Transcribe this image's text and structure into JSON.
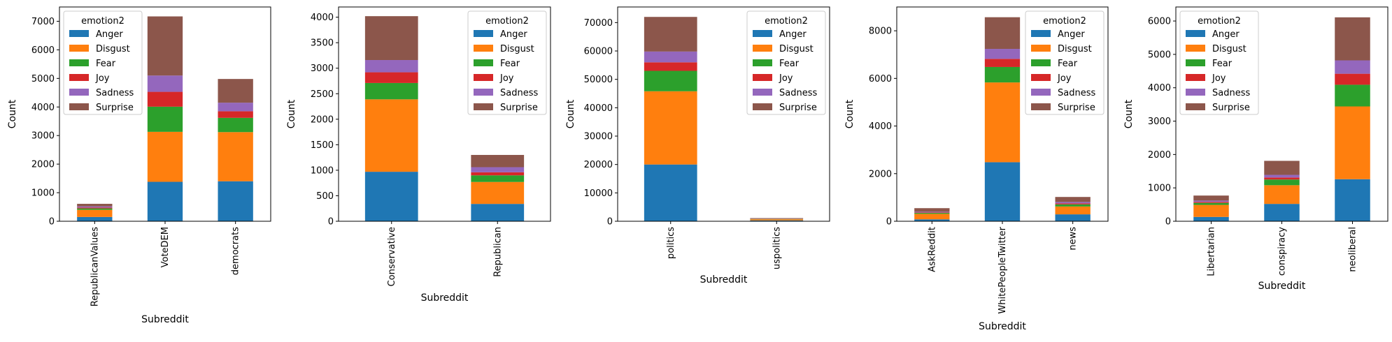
{
  "chart_data": [
    {
      "type": "bar",
      "stacked": true,
      "categories": [
        "RepublicanValues",
        "VoteDEM",
        "democrats"
      ],
      "xlabel": "Subreddit",
      "ylabel": "Count",
      "ylim": [
        0,
        7500
      ],
      "yticks": [
        0,
        1000,
        2000,
        3000,
        4000,
        5000,
        6000,
        7000
      ],
      "legend": {
        "title": "emotion2",
        "placement": "upper-left"
      },
      "series": [
        {
          "name": "Anger",
          "color": "#1f77b4",
          "values": [
            150,
            1380,
            1400
          ]
        },
        {
          "name": "Disgust",
          "color": "#ff7f0e",
          "values": [
            250,
            1750,
            1720
          ]
        },
        {
          "name": "Fear",
          "color": "#2ca02c",
          "values": [
            50,
            880,
            500
          ]
        },
        {
          "name": "Joy",
          "color": "#d62728",
          "values": [
            30,
            520,
            230
          ]
        },
        {
          "name": "Sadness",
          "color": "#9467bd",
          "values": [
            40,
            570,
            300
          ]
        },
        {
          "name": "Surprise",
          "color": "#8c564b",
          "values": [
            90,
            2070,
            830
          ]
        }
      ]
    },
    {
      "type": "bar",
      "stacked": true,
      "categories": [
        "Conservative",
        "Republican"
      ],
      "xlabel": "Subreddit",
      "ylabel": "Count",
      "ylim": [
        0,
        4200
      ],
      "yticks": [
        0,
        500,
        1000,
        1500,
        2000,
        2500,
        3000,
        3500,
        4000
      ],
      "legend": {
        "title": "emotion2",
        "placement": "upper-right"
      },
      "series": [
        {
          "name": "Anger",
          "color": "#1f77b4",
          "values": [
            970,
            340
          ]
        },
        {
          "name": "Disgust",
          "color": "#ff7f0e",
          "values": [
            1420,
            430
          ]
        },
        {
          "name": "Fear",
          "color": "#2ca02c",
          "values": [
            320,
            130
          ]
        },
        {
          "name": "Joy",
          "color": "#d62728",
          "values": [
            210,
            60
          ]
        },
        {
          "name": "Sadness",
          "color": "#9467bd",
          "values": [
            240,
            100
          ]
        },
        {
          "name": "Surprise",
          "color": "#8c564b",
          "values": [
            860,
            240
          ]
        }
      ]
    },
    {
      "type": "bar",
      "stacked": true,
      "categories": [
        "politics",
        "uspolitics"
      ],
      "xlabel": "Subreddit",
      "ylabel": "Count",
      "ylim": [
        0,
        75500
      ],
      "yticks": [
        0,
        10000,
        20000,
        30000,
        40000,
        50000,
        60000,
        70000
      ],
      "legend": {
        "title": "emotion2",
        "placement": "upper-right"
      },
      "series": [
        {
          "name": "Anger",
          "color": "#1f77b4",
          "values": [
            20000,
            300
          ]
        },
        {
          "name": "Disgust",
          "color": "#ff7f0e",
          "values": [
            25800,
            400
          ]
        },
        {
          "name": "Fear",
          "color": "#2ca02c",
          "values": [
            7200,
            100
          ]
        },
        {
          "name": "Joy",
          "color": "#d62728",
          "values": [
            3000,
            50
          ]
        },
        {
          "name": "Sadness",
          "color": "#9467bd",
          "values": [
            3800,
            60
          ]
        },
        {
          "name": "Surprise",
          "color": "#8c564b",
          "values": [
            12200,
            200
          ]
        }
      ]
    },
    {
      "type": "bar",
      "stacked": true,
      "categories": [
        "AskReddit",
        "WhitePeopleTwitter",
        "news"
      ],
      "xlabel": "Subreddit",
      "ylabel": "Count",
      "ylim": [
        0,
        9000
      ],
      "yticks": [
        0,
        2000,
        4000,
        6000,
        8000
      ],
      "legend": {
        "title": "emotion2",
        "placement": "upper-right"
      },
      "series": [
        {
          "name": "Anger",
          "color": "#1f77b4",
          "values": [
            80,
            2480,
            290
          ]
        },
        {
          "name": "Disgust",
          "color": "#ff7f0e",
          "values": [
            230,
            3350,
            330
          ]
        },
        {
          "name": "Fear",
          "color": "#2ca02c",
          "values": [
            40,
            650,
            90
          ]
        },
        {
          "name": "Joy",
          "color": "#d62728",
          "values": [
            20,
            340,
            40
          ]
        },
        {
          "name": "Sadness",
          "color": "#9467bd",
          "values": [
            30,
            420,
            60
          ]
        },
        {
          "name": "Surprise",
          "color": "#8c564b",
          "values": [
            150,
            1330,
            210
          ]
        }
      ]
    },
    {
      "type": "bar",
      "stacked": true,
      "categories": [
        "Libertarian",
        "conspiracy",
        "neoliberal"
      ],
      "xlabel": "Subreddit",
      "ylabel": "Count",
      "ylim": [
        0,
        6420
      ],
      "yticks": [
        0,
        1000,
        2000,
        3000,
        4000,
        5000,
        6000
      ],
      "legend": {
        "title": "emotion2",
        "placement": "upper-left"
      },
      "series": [
        {
          "name": "Anger",
          "color": "#1f77b4",
          "values": [
            130,
            520,
            1260
          ]
        },
        {
          "name": "Disgust",
          "color": "#ff7f0e",
          "values": [
            360,
            560,
            2180
          ]
        },
        {
          "name": "Fear",
          "color": "#2ca02c",
          "values": [
            60,
            170,
            650
          ]
        },
        {
          "name": "Joy",
          "color": "#d62728",
          "values": [
            30,
            60,
            330
          ]
        },
        {
          "name": "Sadness",
          "color": "#9467bd",
          "values": [
            40,
            80,
            400
          ]
        },
        {
          "name": "Surprise",
          "color": "#8c564b",
          "values": [
            150,
            420,
            1290
          ]
        }
      ]
    }
  ]
}
